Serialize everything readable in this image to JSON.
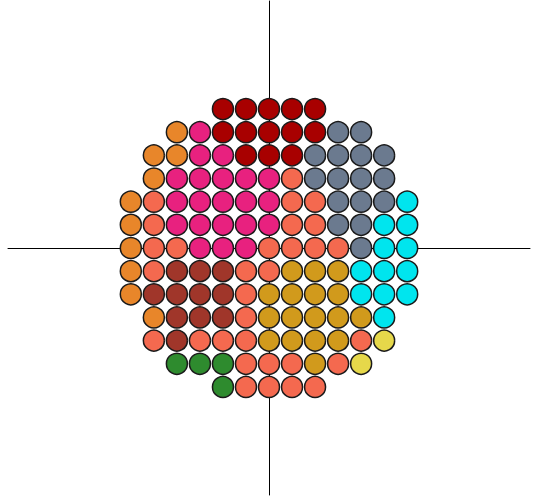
{
  "chart_data": {
    "type": "scatter",
    "xlim": [
      -1.7,
      1.7
    ],
    "ylim": [
      -1.6,
      1.6
    ],
    "tick_labels": false,
    "grid": false,
    "marker": "circle",
    "series": [
      {
        "color": "#a80000",
        "points": [
          [
            -0.3,
            0.9
          ],
          [
            -0.15,
            0.9
          ],
          [
            0,
            0.9
          ],
          [
            0.15,
            0.9
          ],
          [
            0.3,
            0.9
          ],
          [
            -0.3,
            0.75
          ],
          [
            -0.15,
            0.75
          ],
          [
            0,
            0.75
          ],
          [
            0.15,
            0.75
          ],
          [
            0.3,
            0.75
          ],
          [
            -0.15,
            0.6
          ],
          [
            0,
            0.6
          ],
          [
            0.15,
            0.6
          ]
        ]
      },
      {
        "color": "#e8862a",
        "points": [
          [
            -0.6,
            0.75
          ],
          [
            -0.75,
            0.6
          ],
          [
            -0.6,
            0.6
          ],
          [
            -0.75,
            0.45
          ],
          [
            -0.9,
            0.3
          ],
          [
            -0.9,
            0.15
          ],
          [
            -0.9,
            0
          ],
          [
            -0.9,
            -0.15
          ],
          [
            -0.9,
            -0.3
          ],
          [
            -0.75,
            -0.45
          ]
        ]
      },
      {
        "color": "#e8217f",
        "points": [
          [
            -0.45,
            0.75
          ],
          [
            -0.45,
            0.6
          ],
          [
            -0.3,
            0.6
          ],
          [
            -0.6,
            0.45
          ],
          [
            -0.45,
            0.45
          ],
          [
            -0.3,
            0.45
          ],
          [
            -0.15,
            0.45
          ],
          [
            0,
            0.45
          ],
          [
            -0.6,
            0.3
          ],
          [
            -0.45,
            0.3
          ],
          [
            -0.3,
            0.3
          ],
          [
            -0.15,
            0.3
          ],
          [
            0,
            0.3
          ],
          [
            -0.6,
            0.15
          ],
          [
            -0.45,
            0.15
          ],
          [
            -0.3,
            0.15
          ],
          [
            -0.15,
            0.15
          ],
          [
            0,
            0.15
          ],
          [
            -0.45,
            0
          ],
          [
            -0.3,
            0
          ],
          [
            -0.15,
            0
          ]
        ]
      },
      {
        "color": "#6b7a8f",
        "points": [
          [
            0.45,
            0.75
          ],
          [
            0.6,
            0.75
          ],
          [
            0.3,
            0.6
          ],
          [
            0.45,
            0.6
          ],
          [
            0.6,
            0.6
          ],
          [
            0.75,
            0.6
          ],
          [
            0.3,
            0.45
          ],
          [
            0.45,
            0.45
          ],
          [
            0.6,
            0.45
          ],
          [
            0.75,
            0.45
          ],
          [
            0.45,
            0.3
          ],
          [
            0.6,
            0.3
          ],
          [
            0.75,
            0.3
          ],
          [
            0.45,
            0.15
          ],
          [
            0.6,
            0.15
          ],
          [
            0.6,
            0
          ]
        ]
      },
      {
        "color": "#00e5ee",
        "points": [
          [
            0.9,
            0.3
          ],
          [
            0.75,
            0.15
          ],
          [
            0.9,
            0.15
          ],
          [
            0.75,
            0
          ],
          [
            0.9,
            0
          ],
          [
            0.6,
            -0.15
          ],
          [
            0.75,
            -0.15
          ],
          [
            0.9,
            -0.15
          ],
          [
            0.6,
            -0.3
          ],
          [
            0.75,
            -0.3
          ],
          [
            0.9,
            -0.3
          ],
          [
            0.75,
            -0.45
          ]
        ]
      },
      {
        "color": "#f4694f",
        "points": [
          [
            0.15,
            0.45
          ],
          [
            -0.75,
            0.3
          ],
          [
            0.15,
            0.3
          ],
          [
            0.3,
            0.3
          ],
          [
            -0.75,
            0.15
          ],
          [
            0.15,
            0.15
          ],
          [
            0.3,
            0.15
          ],
          [
            -0.75,
            0
          ],
          [
            -0.6,
            0
          ],
          [
            0,
            0
          ],
          [
            0.15,
            0
          ],
          [
            0.3,
            0
          ],
          [
            0.45,
            0
          ],
          [
            -0.75,
            -0.15
          ],
          [
            -0.15,
            -0.15
          ],
          [
            0,
            -0.15
          ],
          [
            -0.15,
            -0.3
          ],
          [
            -0.15,
            -0.45
          ],
          [
            -0.75,
            -0.6
          ],
          [
            -0.45,
            -0.6
          ],
          [
            -0.3,
            -0.6
          ],
          [
            -0.15,
            -0.6
          ],
          [
            0.6,
            -0.6
          ],
          [
            -0.15,
            -0.75
          ],
          [
            0,
            -0.75
          ],
          [
            0.15,
            -0.75
          ],
          [
            0.45,
            -0.75
          ],
          [
            -0.15,
            -0.9
          ],
          [
            0,
            -0.9
          ],
          [
            0.15,
            -0.9
          ],
          [
            0.3,
            -0.9
          ]
        ]
      },
      {
        "color": "#a0362a",
        "points": [
          [
            -0.6,
            -0.15
          ],
          [
            -0.45,
            -0.15
          ],
          [
            -0.3,
            -0.15
          ],
          [
            -0.75,
            -0.3
          ],
          [
            -0.6,
            -0.3
          ],
          [
            -0.45,
            -0.3
          ],
          [
            -0.3,
            -0.3
          ],
          [
            -0.6,
            -0.45
          ],
          [
            -0.45,
            -0.45
          ],
          [
            -0.3,
            -0.45
          ],
          [
            -0.6,
            -0.6
          ]
        ]
      },
      {
        "color": "#d19a1c",
        "points": [
          [
            0.15,
            -0.15
          ],
          [
            0.3,
            -0.15
          ],
          [
            0.45,
            -0.15
          ],
          [
            0,
            -0.3
          ],
          [
            0.15,
            -0.3
          ],
          [
            0.3,
            -0.3
          ],
          [
            0.45,
            -0.3
          ],
          [
            0,
            -0.45
          ],
          [
            0.15,
            -0.45
          ],
          [
            0.3,
            -0.45
          ],
          [
            0.45,
            -0.45
          ],
          [
            0.6,
            -0.45
          ],
          [
            0,
            -0.6
          ],
          [
            0.15,
            -0.6
          ],
          [
            0.3,
            -0.6
          ],
          [
            0.45,
            -0.6
          ],
          [
            0.3,
            -0.75
          ]
        ]
      },
      {
        "color": "#2e8b2e",
        "points": [
          [
            -0.6,
            -0.75
          ],
          [
            -0.45,
            -0.75
          ],
          [
            -0.3,
            -0.75
          ],
          [
            -0.3,
            -0.9
          ]
        ]
      },
      {
        "color": "#e6d84a",
        "points": [
          [
            0.75,
            -0.6
          ],
          [
            0.6,
            -0.75
          ]
        ]
      }
    ]
  }
}
